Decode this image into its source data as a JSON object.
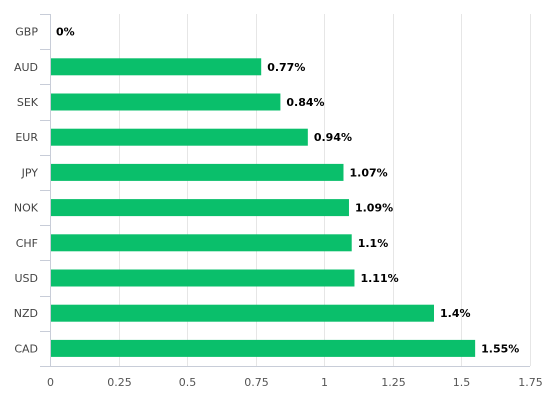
{
  "chart_data": {
    "type": "bar",
    "orientation": "horizontal",
    "categories": [
      "GBP",
      "AUD",
      "SEK",
      "EUR",
      "JPY",
      "NOK",
      "CHF",
      "USD",
      "NZD",
      "CAD"
    ],
    "values": [
      0,
      0.77,
      0.84,
      0.94,
      1.07,
      1.09,
      1.1,
      1.11,
      1.4,
      1.55
    ],
    "data_labels": [
      "0%",
      "0.77%",
      "0.84%",
      "0.94%",
      "1.07%",
      "1.09%",
      "1.1%",
      "1.11%",
      "1.4%",
      "1.55%"
    ],
    "x_ticks": [
      0,
      0.25,
      0.5,
      0.75,
      1,
      1.25,
      1.5,
      1.75
    ],
    "x_tick_labels": [
      "0",
      "0.25",
      "0.5",
      "0.75",
      "1",
      "1.25",
      "1.5",
      "1.75"
    ],
    "xlim": [
      0,
      1.75
    ],
    "title": "",
    "xlabel": "",
    "ylabel": "",
    "grid": "vertical",
    "legend": "none",
    "colors": {
      "bar": "#0abf6b",
      "grid": "#e6e6e6",
      "axis": "#c8cdd8"
    }
  }
}
